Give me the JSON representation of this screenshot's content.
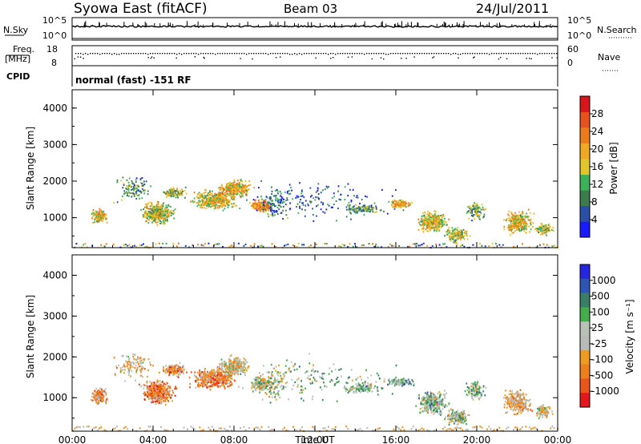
{
  "header": {
    "station": "Syowa East (fitACF)",
    "beam": "Beam 03",
    "date": "24/Jul/2011"
  },
  "noise_panel": {
    "left_label": "N.Sky",
    "left_ticks": [
      "10^5",
      "10^0"
    ],
    "right_label": "N.Search",
    "right_ticks": [
      "10^5",
      "10^0"
    ]
  },
  "freq_panel": {
    "left_label_top": "Freq.",
    "left_label_bottom": "[MHz]",
    "left_ticks": [
      "18",
      "8"
    ],
    "right_label": "Nave",
    "right_ticks": [
      "60",
      "0"
    ]
  },
  "cpid_panel": {
    "label": "CPID",
    "mode": "normal (fast) -151 RF"
  },
  "colors": {
    "power_scale": [
      "#1a1aff",
      "#2a4fa8",
      "#3c7d50",
      "#3db05a",
      "#e2c62a",
      "#f2a81e",
      "#ef7a1a",
      "#e8511c",
      "#d8141c"
    ],
    "velocity_scale": [
      "#2626e0",
      "#2e54b8",
      "#3a7e66",
      "#43ad4c",
      "#b8c2b6",
      "#b9bbb8",
      "#f09a1e",
      "#f07e1a",
      "#ec5418",
      "#e2181c"
    ]
  },
  "chart_data": [
    {
      "type": "heatmap",
      "name": "power",
      "ylabel": "Slant Range [km]",
      "ylim": [
        180,
        4500
      ],
      "yticks": [
        "1000",
        "2000",
        "3000",
        "4000"
      ],
      "xlim_hours": [
        0,
        24
      ],
      "xticks": [
        "00:00",
        "04:00",
        "08:00",
        "12:00",
        "16:00",
        "20:00",
        "00:00"
      ],
      "colorbar_label": "Power [dB]",
      "colorbar_range": [
        0,
        32
      ],
      "colorbar_ticks": [
        "4",
        "8",
        "12",
        "16",
        "20",
        "24",
        "28"
      ]
    },
    {
      "type": "heatmap",
      "name": "velocity",
      "ylabel": "Slant Range [km]",
      "ylim": [
        180,
        4500
      ],
      "yticks": [
        "1000",
        "2000",
        "3000",
        "4000"
      ],
      "xlim_hours": [
        0,
        24
      ],
      "xticks": [
        "00:00",
        "04:00",
        "08:00",
        "12:00",
        "16:00",
        "20:00",
        "00:00"
      ],
      "xlabel": "Time UT",
      "colorbar_label": "Velocity [m s⁻¹]",
      "colorbar_ticks": [
        "1000",
        "500",
        "100",
        "25",
        "-25",
        "-100",
        "-500",
        "-1000"
      ]
    }
  ]
}
